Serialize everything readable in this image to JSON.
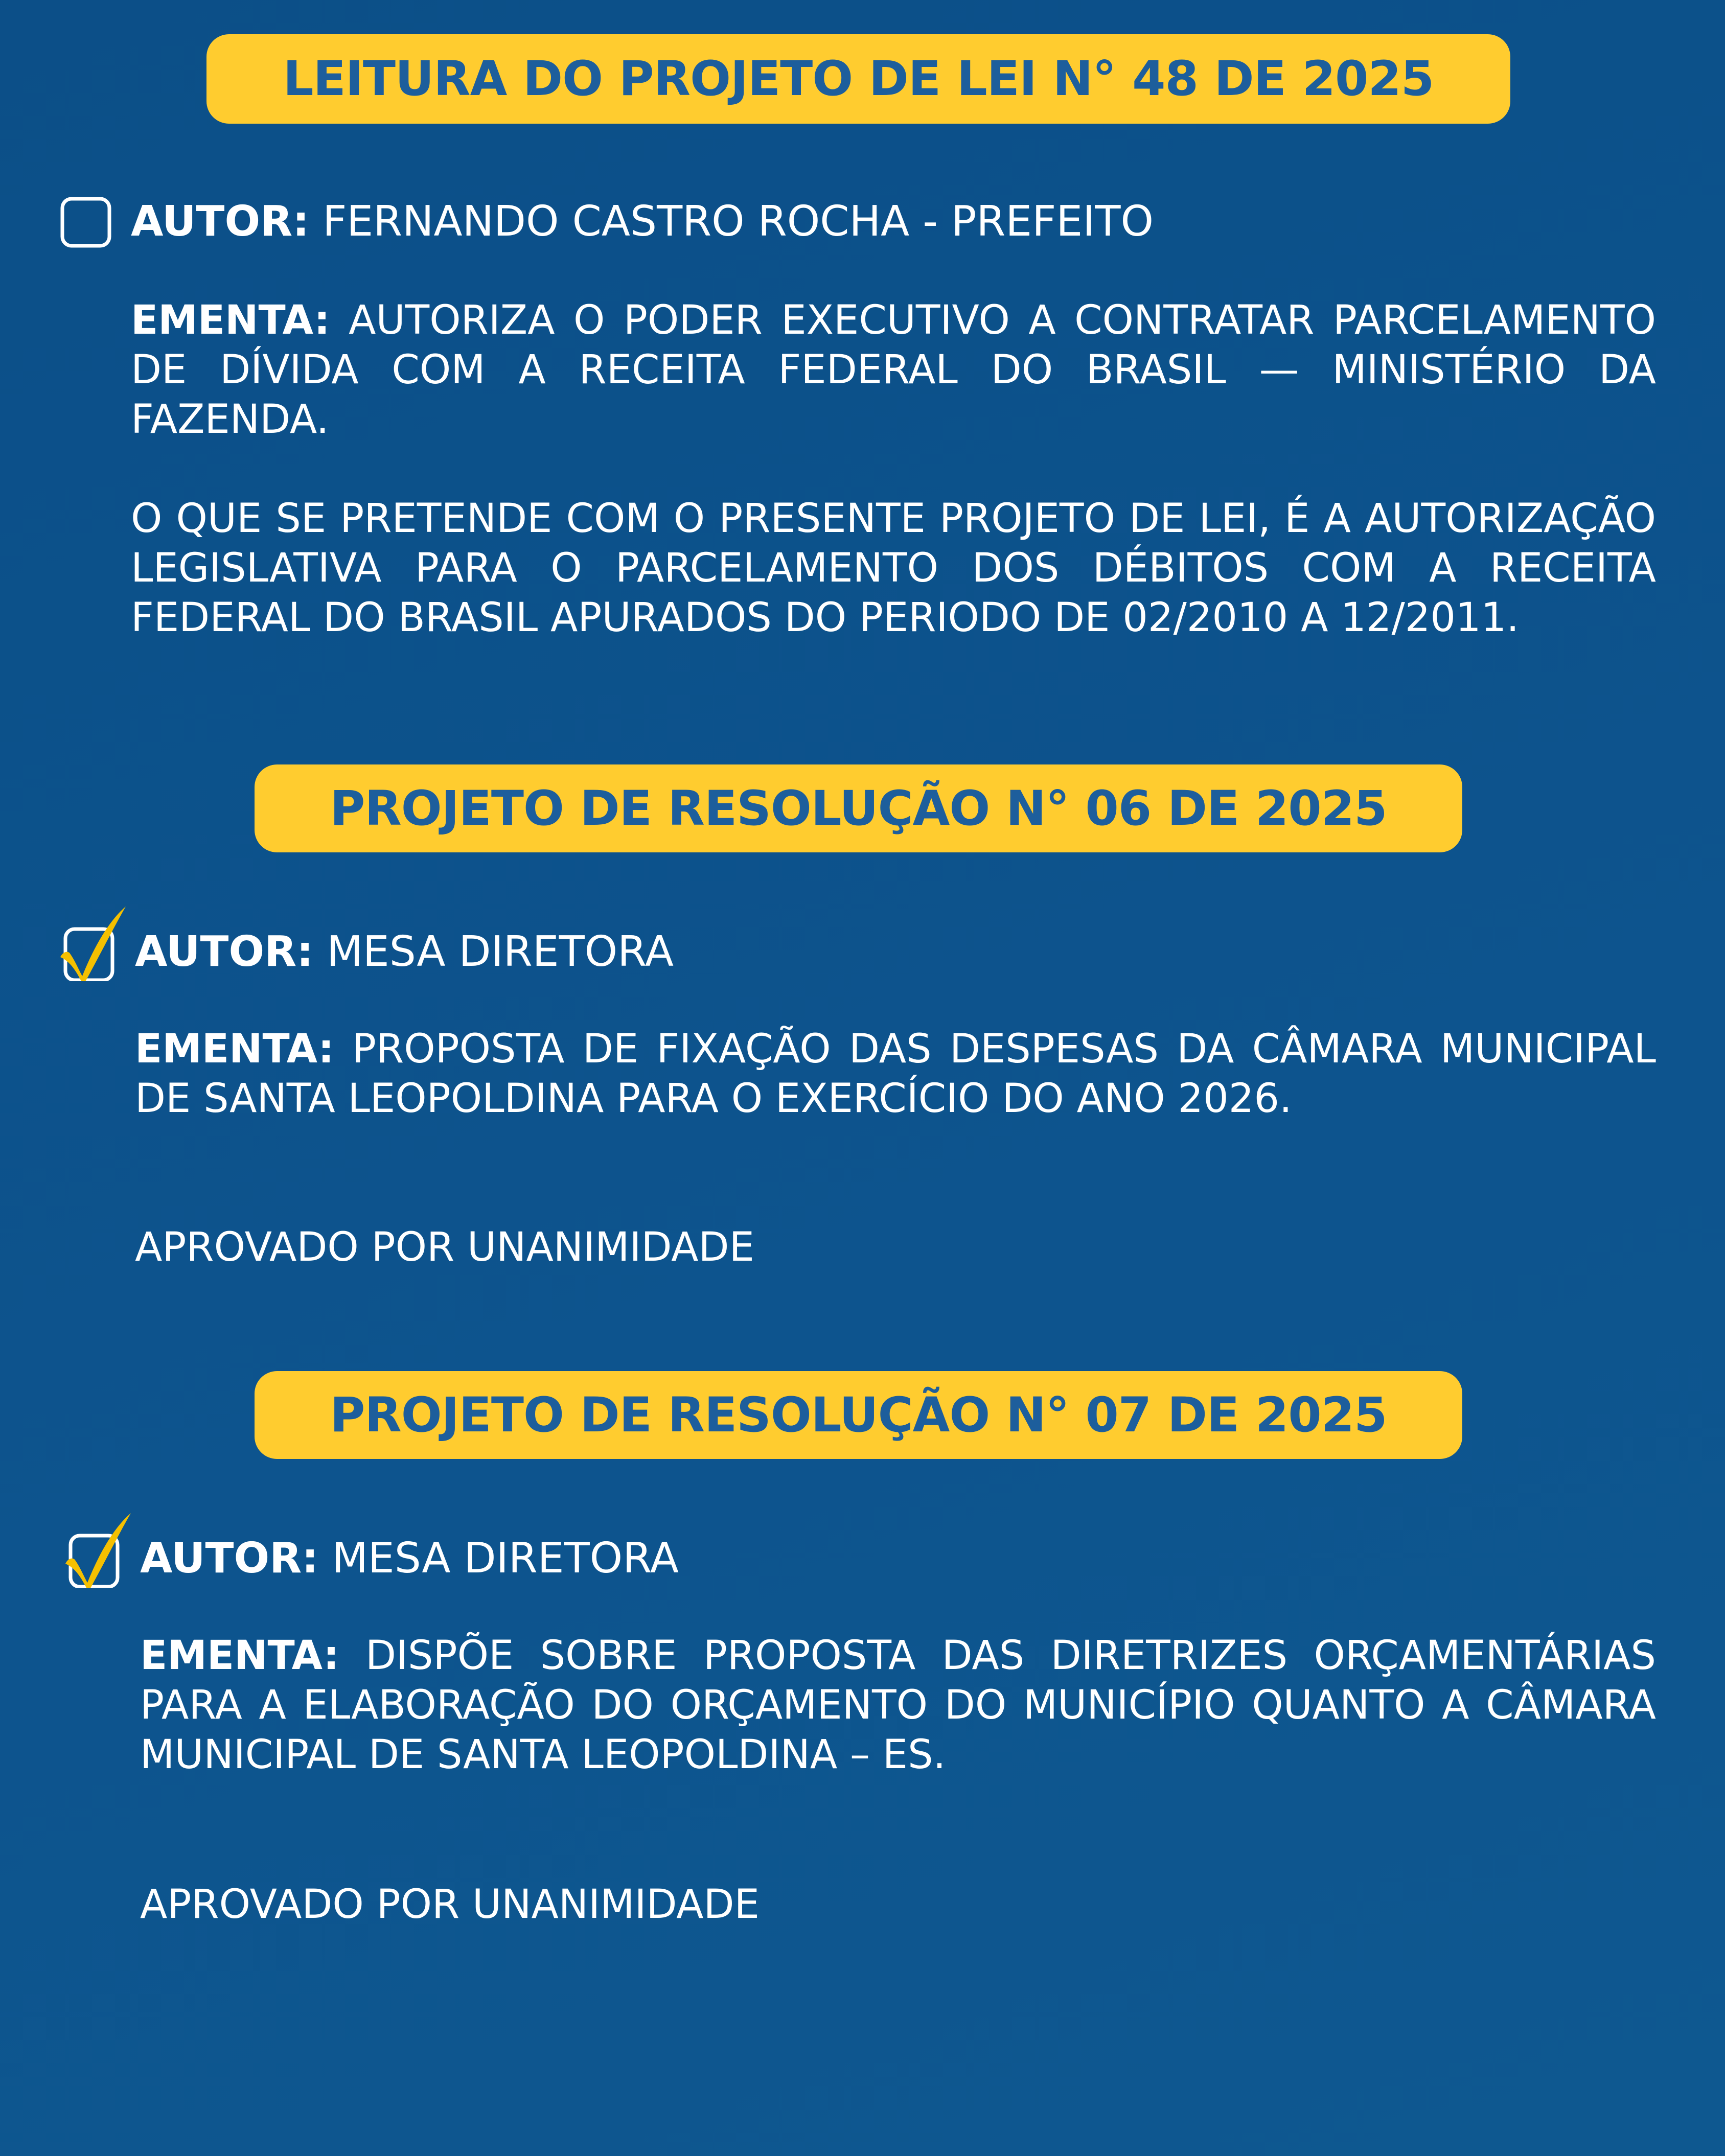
{
  "colors": {
    "background": "#0d5089",
    "banner": "#ffcc2f",
    "banner_text": "#1d5e9c",
    "check": "#f5c000"
  },
  "sections": [
    {
      "title": "LEITURA DO PROJETO DE LEI N° 48 DE 2025",
      "checked": false,
      "autor_label": "AUTOR:",
      "autor": "FERNANDO CASTRO ROCHA - PREFEITO",
      "ementa_label": "EMENTA:",
      "ementa": "AUTORIZA O PODER EXECUTIVO A CONTRATAR PARCELAMENTO DE DÍVIDA COM A RECEITA FEDERAL DO BRASIL — MINISTÉRIO DA FAZENDA.",
      "note": "O QUE SE PRETENDE COM O PRESENTE PROJETO DE LEI, É A AUTORIZAÇÃO LEGISLATIVA PARA O PARCELAMENTO DOS DÉBITOS COM A RECEITA FEDERAL DO BRASIL APURADOS DO PERIODO DE 02/2010 A 12/2011."
    },
    {
      "title": "PROJETO DE RESOLUÇÃO N° 06 DE 2025",
      "checked": true,
      "autor_label": "AUTOR:",
      "autor": "MESA DIRETORA",
      "ementa_label": "EMENTA:",
      "ementa": "PROPOSTA DE FIXAÇÃO DAS DESPESAS DA CÂMARA MUNICIPAL DE SANTA LEOPOLDINA PARA O EXERCÍCIO DO ANO 2026.",
      "note": "APROVADO POR UNANIMIDADE"
    },
    {
      "title": "PROJETO DE RESOLUÇÃO N° 07 DE 2025",
      "checked": true,
      "autor_label": "AUTOR:",
      "autor": "MESA DIRETORA",
      "ementa_label": "EMENTA:",
      "ementa": "DISPÕE SOBRE PROPOSTA DAS DIRETRIZES ORÇAMENTÁRIAS PARA A ELABORAÇÃO DO ORÇAMENTO DO MUNICÍPIO QUANTO A CÂMARA MUNICIPAL DE SANTA LEOPOLDINA – ES.",
      "note": "APROVADO POR UNANIMIDADE"
    }
  ]
}
